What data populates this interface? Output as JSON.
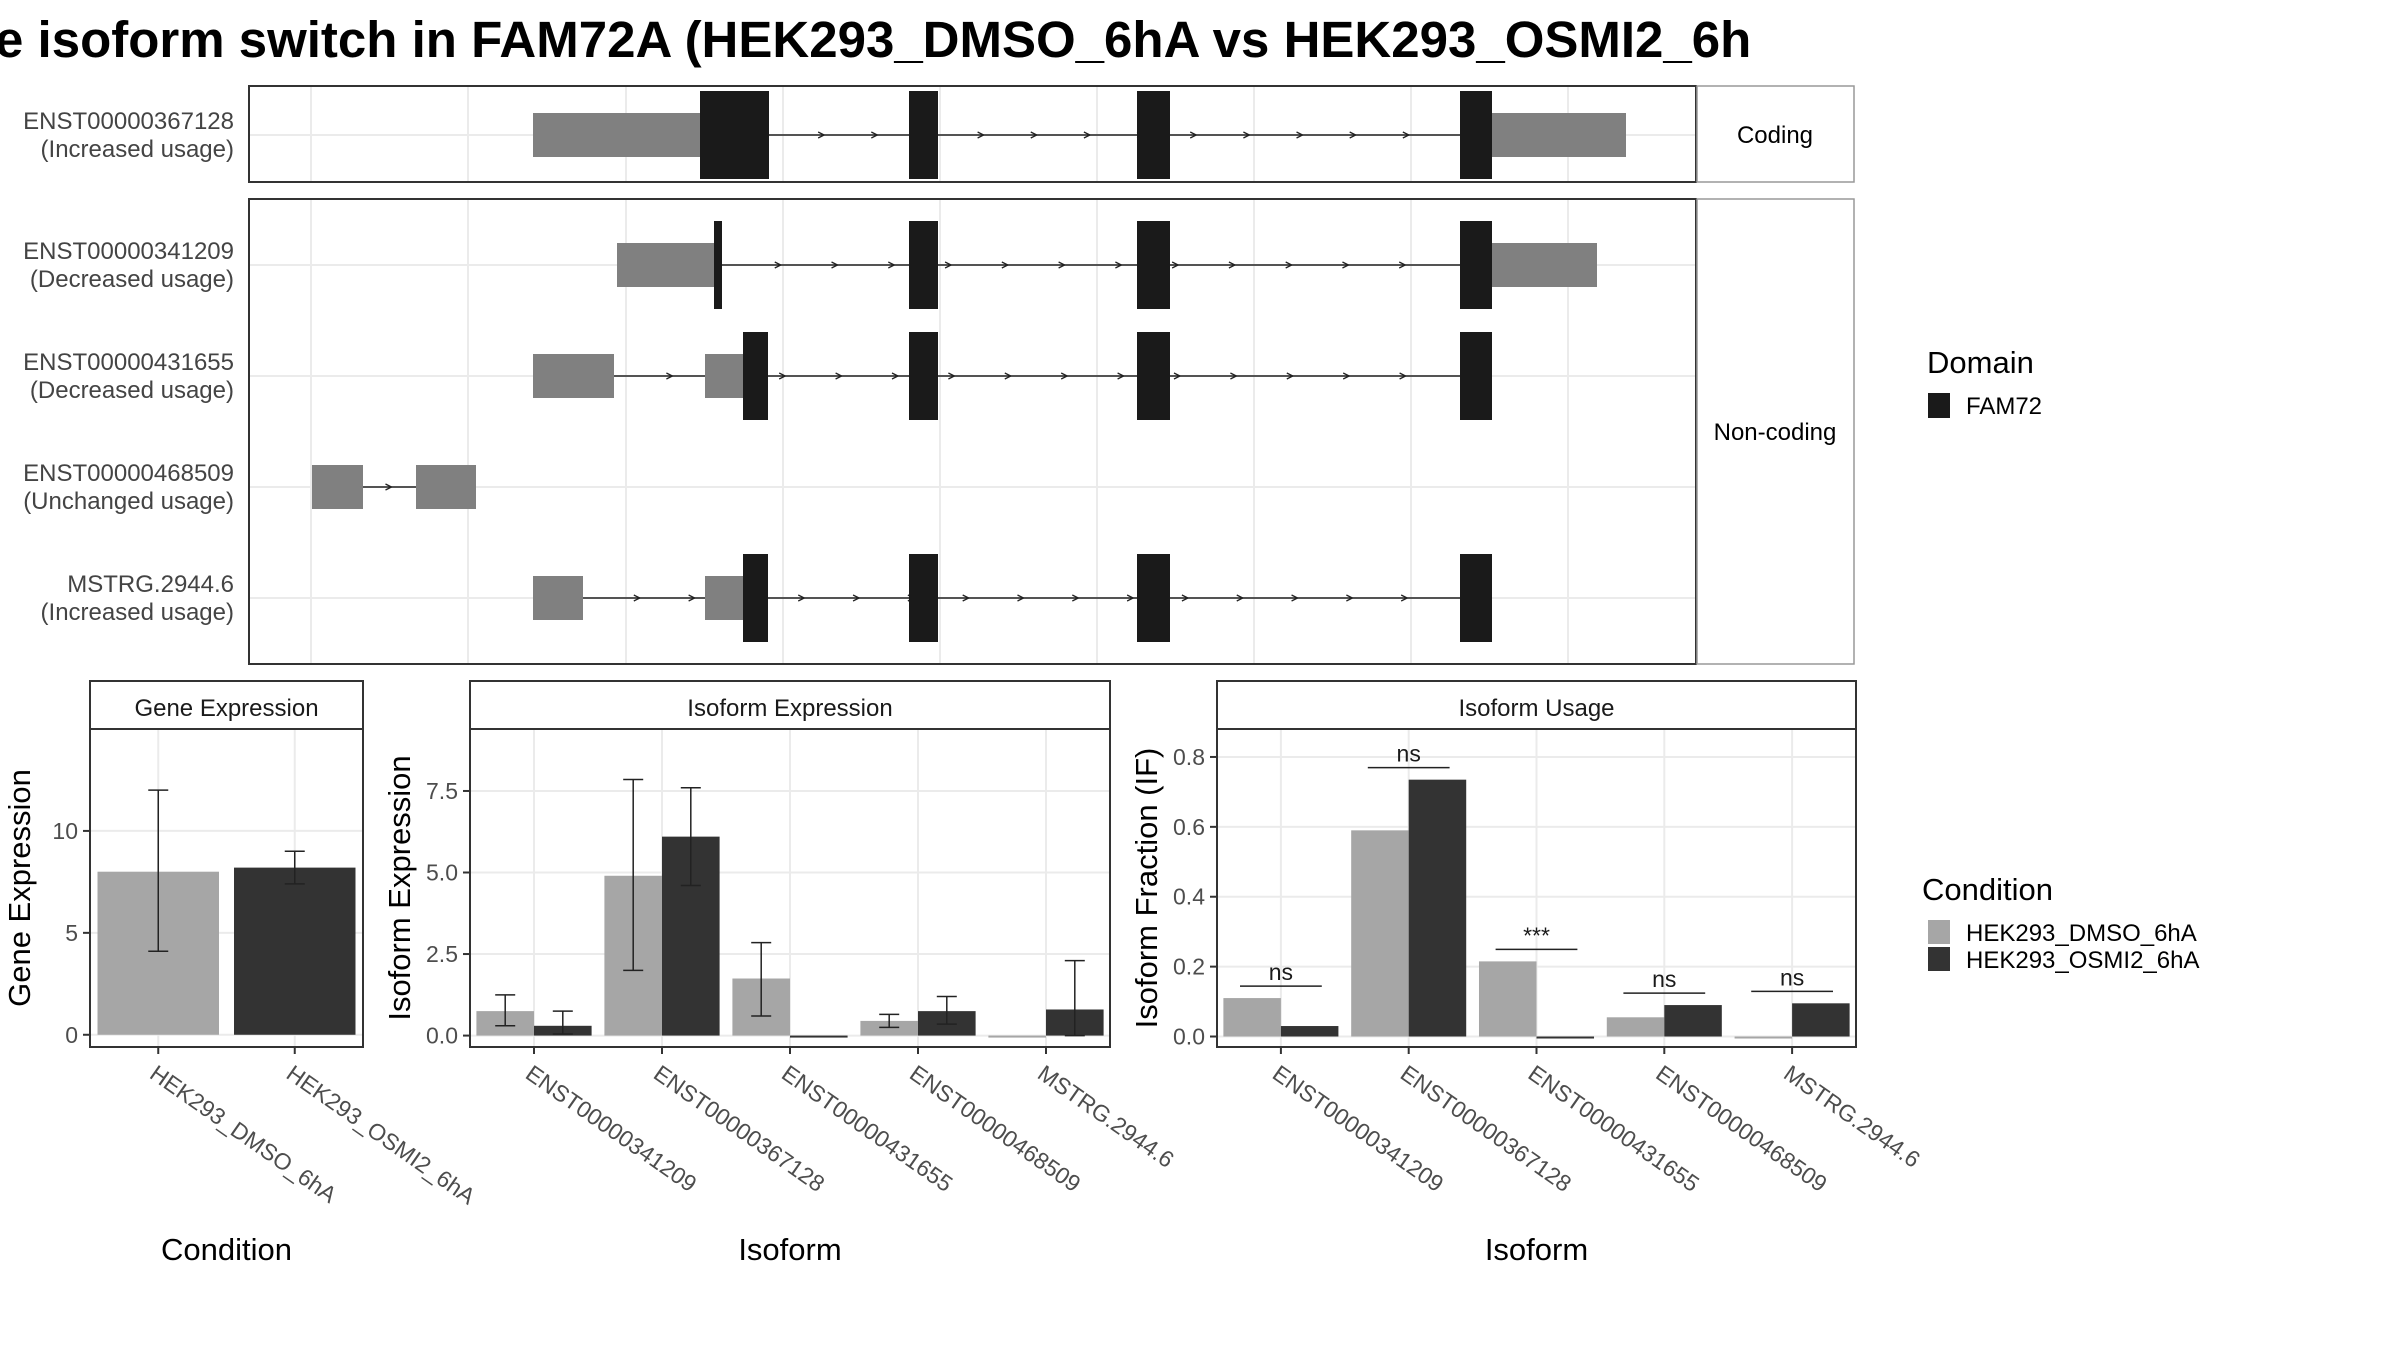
{
  "title": "e isoform switch in FAM72A (HEK293_DMSO_6hA vs HEK293_OSMI2_6h",
  "colors": {
    "utr": "#808080",
    "cds": "#1a1a1a",
    "dmso": "#a6a6a6",
    "osmi": "#333333"
  },
  "structure": {
    "facet_coding": "Coding",
    "facet_noncoding": "Non-coding",
    "coding_isoforms": [
      {
        "id": "ENST00000367128",
        "usage": "(Increased usage)"
      }
    ],
    "noncoding_isoforms": [
      {
        "id": "ENST00000341209",
        "usage": "(Decreased usage)"
      },
      {
        "id": "ENST00000431655",
        "usage": "(Decreased usage)"
      },
      {
        "id": "ENST00000468509",
        "usage": "(Unchanged usage)"
      },
      {
        "id": "MSTRG.2944.6",
        "usage": "(Increased usage)"
      }
    ],
    "domain_legend_title": "Domain",
    "domain_legend_item": "FAM72"
  },
  "condition_legend": {
    "title": "Condition",
    "items": [
      "HEK293_DMSO_6hA",
      "HEK293_OSMI2_6hA"
    ]
  },
  "chart_data": [
    {
      "type": "bar",
      "title": "Gene Expression",
      "xlabel": "Condition",
      "ylabel": "Gene Expression",
      "ylim": [
        -0.6,
        15
      ],
      "yticks": [
        0,
        5,
        10
      ],
      "categories": [
        "HEK293_DMSO_6hA",
        "HEK293_OSMI2_6hA"
      ],
      "values": [
        8.0,
        8.2
      ],
      "error_low": [
        4.1,
        7.4
      ],
      "error_high": [
        12.0,
        9.0
      ]
    },
    {
      "type": "bar",
      "title": "Isoform Expression",
      "xlabel": "Isoform",
      "ylabel": "Isoform Expression",
      "ylim": [
        -0.35,
        9.4
      ],
      "yticks": [
        "0.0",
        "2.5",
        "5.0",
        "7.5"
      ],
      "categories": [
        "ENST00000341209",
        "ENST00000367128",
        "ENST00000431655",
        "ENST00000468509",
        "MSTRG.2944.6"
      ],
      "series": [
        {
          "name": "HEK293_DMSO_6hA",
          "values": [
            0.75,
            4.9,
            1.75,
            0.45,
            0.0
          ],
          "error_low": [
            0.3,
            2.0,
            0.6,
            0.25,
            0.0
          ],
          "error_high": [
            1.25,
            7.85,
            2.85,
            0.65,
            0.0
          ]
        },
        {
          "name": "HEK293_OSMI2_6hA",
          "values": [
            0.3,
            6.1,
            0.0,
            0.75,
            0.8
          ],
          "error_low": [
            0.05,
            4.6,
            0.0,
            0.35,
            0.0
          ],
          "error_high": [
            0.75,
            7.6,
            0.0,
            1.2,
            2.3
          ]
        }
      ]
    },
    {
      "type": "bar",
      "title": "Isoform Usage",
      "xlabel": "Isoform",
      "ylabel": "Isoform Fraction (IF)",
      "ylim": [
        -0.03,
        0.88
      ],
      "yticks": [
        "0.0",
        "0.2",
        "0.4",
        "0.6",
        "0.8"
      ],
      "categories": [
        "ENST00000341209",
        "ENST00000367128",
        "ENST00000431655",
        "ENST00000468509",
        "MSTRG.2944.6"
      ],
      "series": [
        {
          "name": "HEK293_DMSO_6hA",
          "values": [
            0.11,
            0.59,
            0.215,
            0.055,
            0.0
          ]
        },
        {
          "name": "HEK293_OSMI2_6hA",
          "values": [
            0.03,
            0.735,
            0.0,
            0.09,
            0.095
          ]
        }
      ],
      "annotations": [
        "ns",
        "ns",
        "***",
        "ns",
        "ns"
      ]
    }
  ]
}
